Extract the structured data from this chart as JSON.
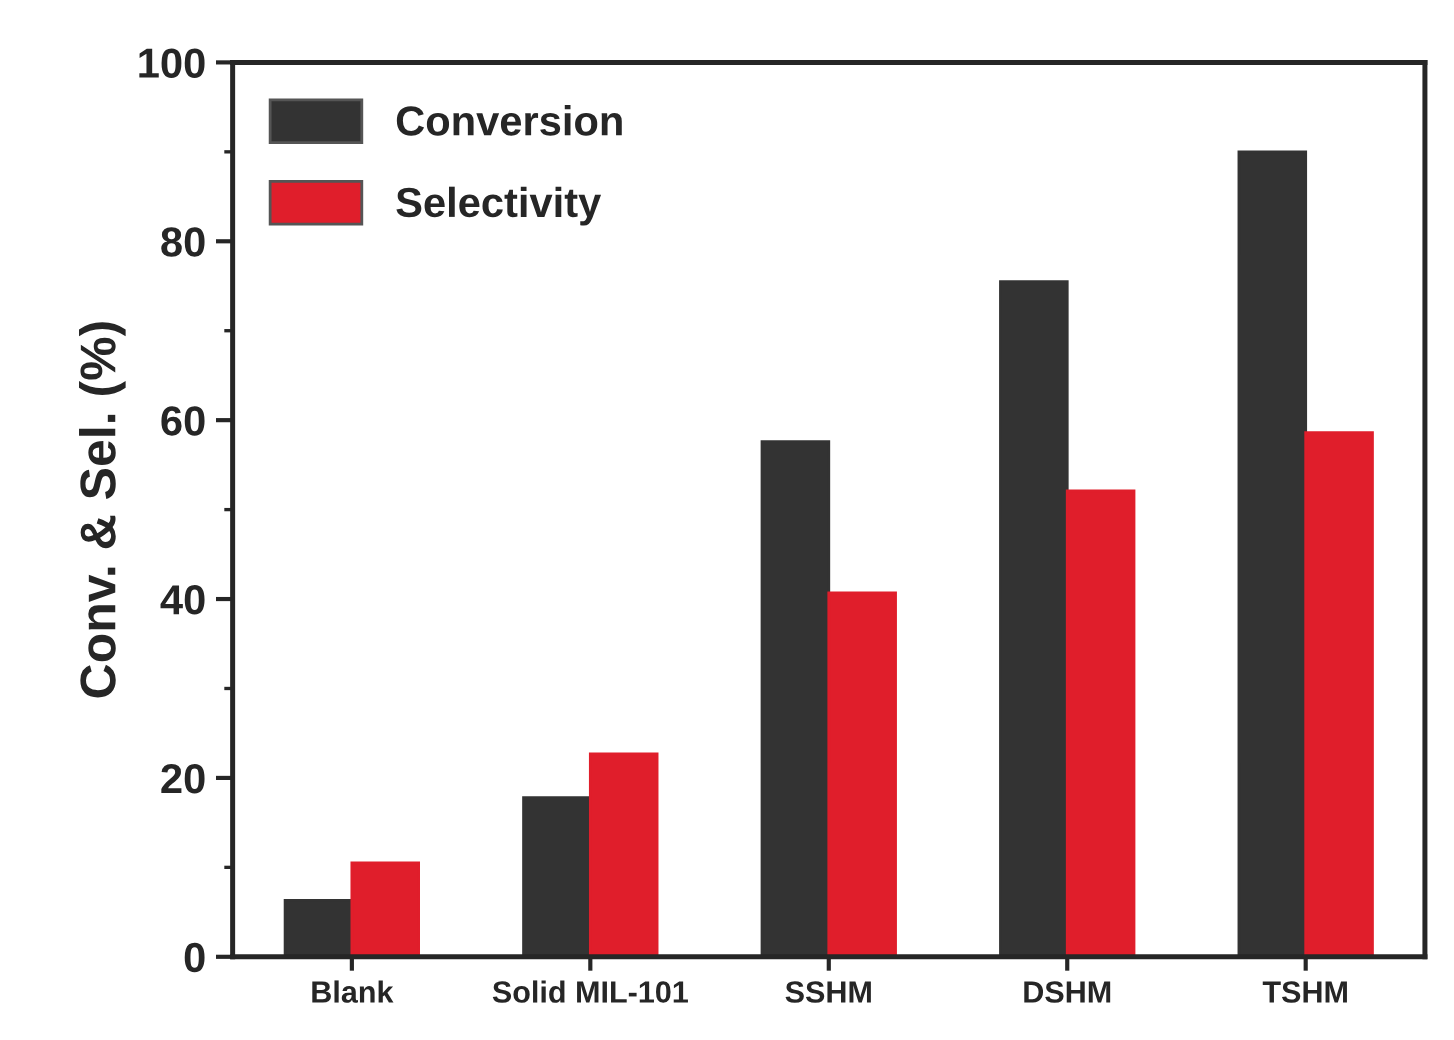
{
  "chart_data": {
    "type": "bar",
    "ylabel": "Conv. & Sel. (%)",
    "categories": [
      "Blank",
      "Solid MIL-101",
      "SSHM",
      "DSHM",
      "TSHM"
    ],
    "series": [
      {
        "name": "Conversion",
        "color": "#333333",
        "values": [
          6.3,
          17.8,
          57.6,
          75.5,
          90
        ]
      },
      {
        "name": "Selectivity",
        "color": "#e01e2b",
        "values": [
          10.5,
          22.7,
          40.7,
          52.1,
          58.6
        ]
      }
    ],
    "ylim": [
      0,
      100
    ],
    "yticks": [
      0,
      20,
      40,
      60,
      80,
      100
    ],
    "grid": false,
    "legend": "top left"
  }
}
